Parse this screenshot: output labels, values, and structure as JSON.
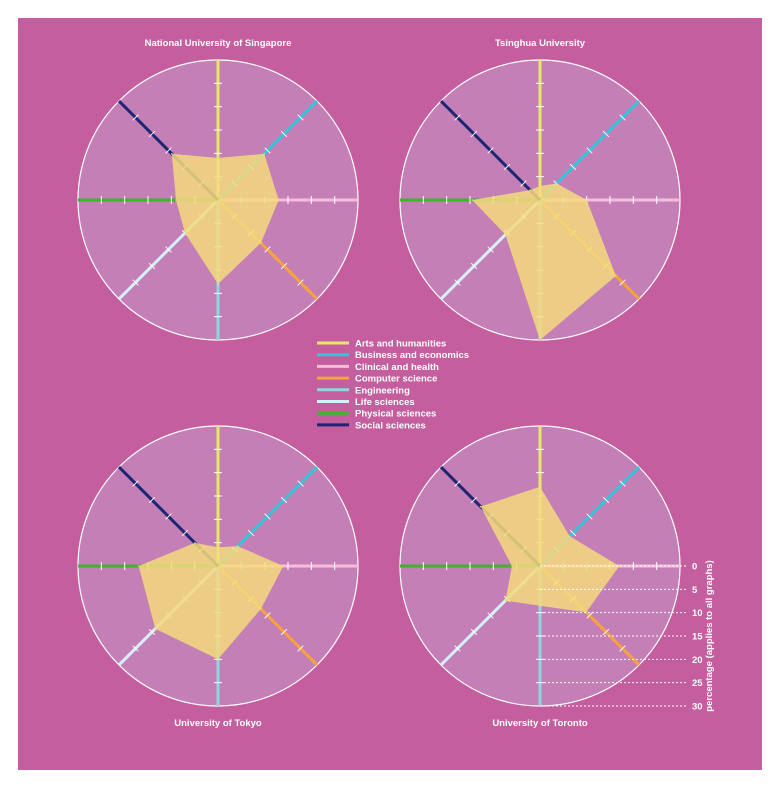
{
  "chart_data": [
    {
      "type": "radar",
      "title": "National University of Singapore",
      "values": [
        9,
        14,
        13,
        13,
        18,
        10,
        9,
        14
      ]
    },
    {
      "type": "radar",
      "title": "Tsinghua University",
      "values": [
        3,
        5,
        10,
        23,
        30,
        10.5,
        14.5,
        3
      ]
    },
    {
      "type": "radar",
      "title": "University of Tokyo",
      "values": [
        4,
        6,
        14,
        13,
        20,
        19,
        17,
        7
      ]
    },
    {
      "type": "radar",
      "title": "University of Toronto",
      "values": [
        17,
        9,
        17,
        14,
        8.5,
        10.5,
        6,
        18
      ]
    }
  ],
  "categories": [
    "Arts and humanities",
    "Business and economics",
    "Clinical and health",
    "Computer science",
    "Engineering",
    "Life sciences",
    "Physical sciences",
    "Social sciences"
  ],
  "category_colors": [
    "#e6e86c",
    "#35c4d9",
    "#f6bcdc",
    "#f7a23e",
    "#8fd6df",
    "#d6f0fa",
    "#3db52a",
    "#1c2672"
  ],
  "scale": {
    "label": "percentage (applies to all graphs)",
    "ticks": [
      "0",
      "5",
      "10",
      "15",
      "20",
      "25",
      "30"
    ],
    "range": [
      0,
      30
    ]
  },
  "colors": {
    "background": "#c45e9e",
    "disc": "#c47fb6",
    "fill": "#f5da7c"
  }
}
